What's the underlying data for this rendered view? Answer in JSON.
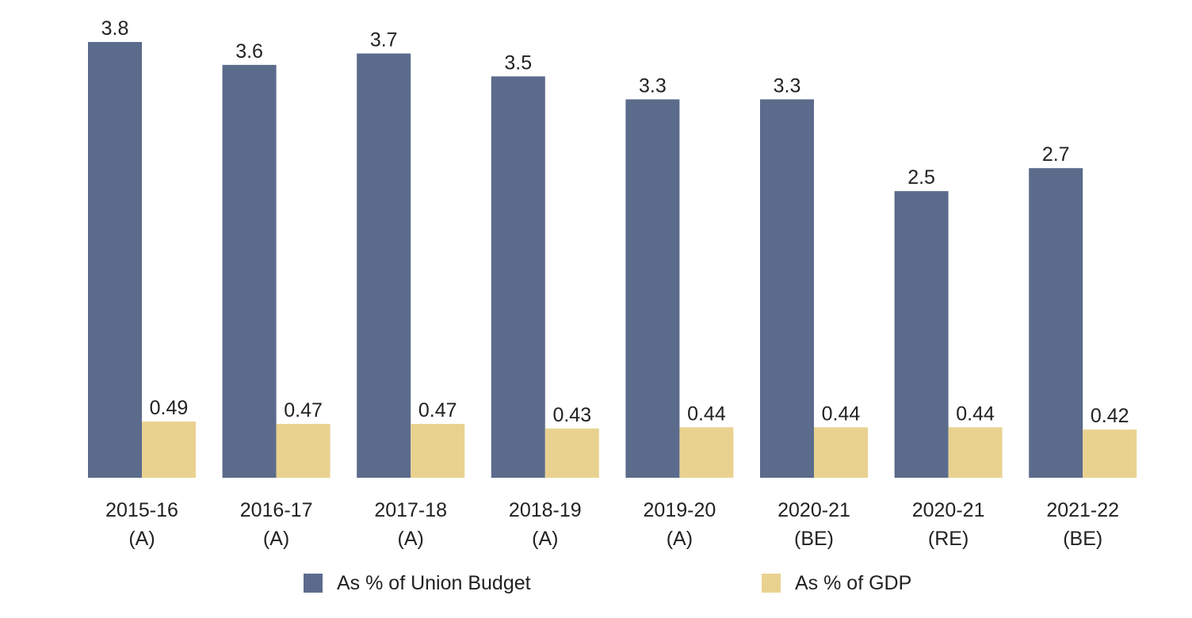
{
  "chart_data": {
    "type": "bar",
    "categories": [
      [
        "2015-16",
        "(A)"
      ],
      [
        "2016-17",
        "(A)"
      ],
      [
        "2017-18",
        "(A)"
      ],
      [
        "2018-19",
        "(A)"
      ],
      [
        "2019-20",
        "(A)"
      ],
      [
        "2020-21",
        "(BE)"
      ],
      [
        "2020-21",
        "(RE)"
      ],
      [
        "2021-22",
        "(BE)"
      ]
    ],
    "series": [
      {
        "name": "As % of Union Budget",
        "color": "#5b6b8c",
        "values": [
          3.8,
          3.6,
          3.7,
          3.5,
          3.3,
          3.3,
          2.5,
          2.7
        ],
        "labels": [
          "3.8",
          "3.6",
          "3.7",
          "3.5",
          "3.3",
          "3.3",
          "2.5",
          "2.7"
        ]
      },
      {
        "name": "As % of GDP",
        "color": "#e9d290",
        "values": [
          0.49,
          0.47,
          0.47,
          0.43,
          0.44,
          0.44,
          0.44,
          0.42
        ],
        "labels": [
          "0.49",
          "0.47",
          "0.47",
          "0.43",
          "0.44",
          "0.44",
          "0.44",
          "0.42"
        ]
      }
    ],
    "title": "",
    "xlabel": "",
    "ylabel": "",
    "ylim": [
      0,
      3.8
    ],
    "grid": false,
    "legend_position": "bottom",
    "data_labels": true
  }
}
